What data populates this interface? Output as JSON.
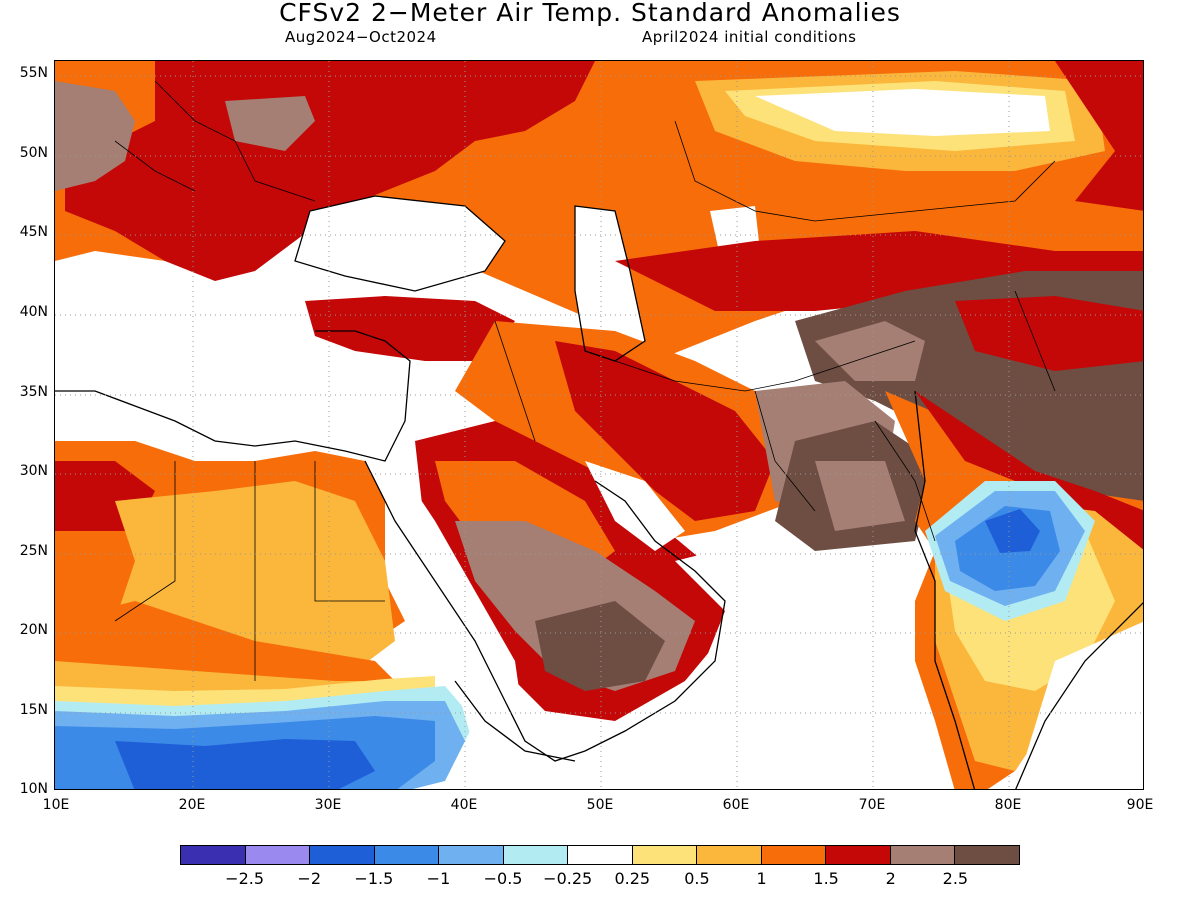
{
  "title": "CFSv2 2−Meter Air Temp. Standard Anomalies",
  "subtitle_left": "Aug2024−Oct2024",
  "subtitle_right": "April2024 initial conditions",
  "lat_ticks": [
    "55N",
    "50N",
    "45N",
    "40N",
    "35N",
    "30N",
    "25N",
    "20N",
    "15N",
    "10N"
  ],
  "lon_ticks": [
    "10E",
    "20E",
    "30E",
    "40E",
    "50E",
    "60E",
    "70E",
    "80E",
    "90E"
  ],
  "colorbar": {
    "colors": [
      "#3a2fb0",
      "#9a8af0",
      "#1e5fd8",
      "#3c8ae8",
      "#6fb0f0",
      "#b2ecf2",
      "#ffffff",
      "#fde27a",
      "#fbb73b",
      "#f66d0a",
      "#c40707",
      "#a57f74",
      "#6e4d43"
    ],
    "labels": [
      "−2.5",
      "−2",
      "−1.5",
      "−1",
      "−0.5",
      "−0.25",
      "0.25",
      "0.5",
      "1",
      "1.5",
      "2",
      "2.5"
    ]
  }
}
